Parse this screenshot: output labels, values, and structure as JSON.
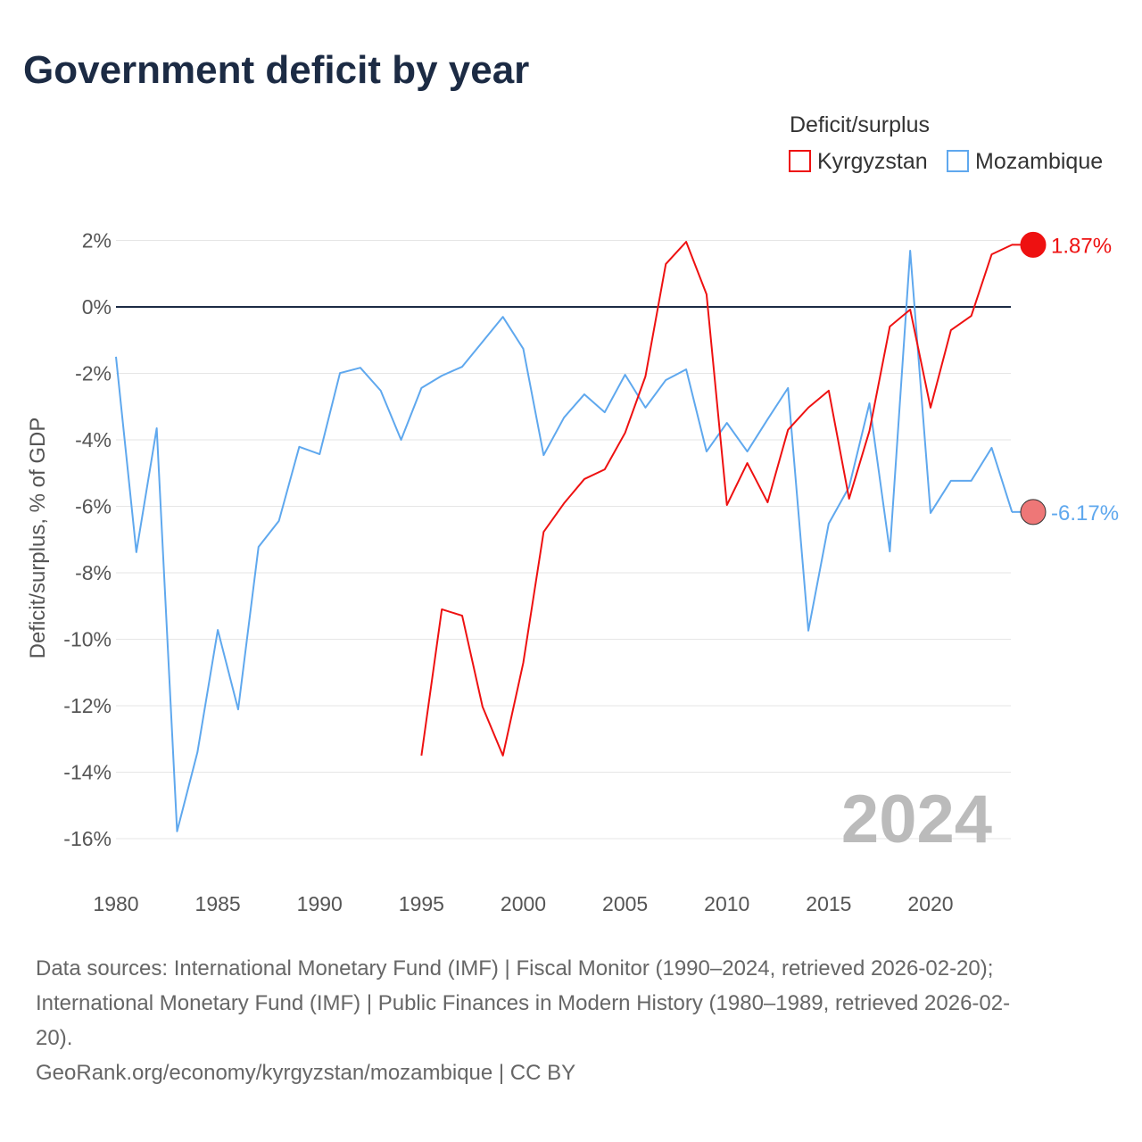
{
  "chart_data": {
    "type": "line",
    "title": "Government deficit by year",
    "ylabel": "Deficit/surplus, % of GDP",
    "xlabel": "",
    "xlim": [
      1980,
      2024
    ],
    "ylim": [
      -16,
      2
    ],
    "x_ticks": [
      1980,
      1985,
      1990,
      1995,
      2000,
      2005,
      2010,
      2015,
      2020
    ],
    "y_ticks": [
      2,
      0,
      -2,
      -4,
      -6,
      -8,
      -10,
      -12,
      -14,
      -16
    ],
    "y_tick_labels": [
      "2%",
      "0%",
      "-2%",
      "-4%",
      "-6%",
      "-8%",
      "-10%",
      "-12%",
      "-14%",
      "-16%"
    ],
    "x_tick_labels": [
      "1980",
      "1985",
      "1990",
      "1995",
      "2000",
      "2005",
      "2010",
      "2015",
      "2020"
    ],
    "legend_title": "Deficit/surplus",
    "legend_position": "top-right",
    "year_watermark": "2024",
    "series": [
      {
        "name": "Kyrgyzstan",
        "color": "#ee1111",
        "end_label": "1.87%",
        "x": [
          1995,
          1996,
          1997,
          1998,
          1999,
          2000,
          2001,
          2002,
          2003,
          2004,
          2005,
          2006,
          2007,
          2008,
          2009,
          2010,
          2011,
          2012,
          2013,
          2014,
          2015,
          2016,
          2017,
          2018,
          2019,
          2020,
          2021,
          2022,
          2023,
          2024
        ],
        "values": [
          -13.5,
          -9.1,
          -9.29,
          -12.03,
          -13.5,
          -10.71,
          -6.77,
          -5.91,
          -5.18,
          -4.89,
          -3.79,
          -2.09,
          1.29,
          1.96,
          0.38,
          -5.96,
          -4.7,
          -5.88,
          -3.7,
          -3.03,
          -2.52,
          -5.77,
          -3.73,
          -0.59,
          -0.08,
          -3.03,
          -0.7,
          -0.27,
          1.58,
          1.87
        ]
      },
      {
        "name": "Mozambique",
        "color": "#5fa8ee",
        "end_label": "-6.17%",
        "x": [
          1980,
          1981,
          1982,
          1983,
          1984,
          1985,
          1986,
          1987,
          1988,
          1989,
          1990,
          1991,
          1992,
          1993,
          1994,
          1995,
          1996,
          1997,
          1998,
          1999,
          2000,
          2001,
          2002,
          2003,
          2004,
          2005,
          2006,
          2007,
          2008,
          2009,
          2010,
          2011,
          2012,
          2013,
          2014,
          2015,
          2016,
          2017,
          2018,
          2019,
          2020,
          2021,
          2022,
          2023,
          2024
        ],
        "values": [
          -1.5,
          -7.38,
          -3.65,
          -15.78,
          -13.4,
          -9.72,
          -12.11,
          -7.22,
          -6.44,
          -4.21,
          -4.43,
          -1.99,
          -1.83,
          -2.52,
          -4.0,
          -2.44,
          -2.07,
          -1.8,
          -1.05,
          -0.3,
          -1.26,
          -4.46,
          -3.33,
          -2.63,
          -3.17,
          -2.04,
          -3.03,
          -2.2,
          -1.88,
          -4.35,
          -3.49,
          -4.35,
          -3.38,
          -2.44,
          -9.74,
          -6.52,
          -5.42,
          -2.9,
          -7.36,
          1.69,
          -6.2,
          -5.23,
          -5.23,
          -4.24,
          -6.17
        ]
      }
    ]
  },
  "footer": {
    "source_line1": "Data sources: International Monetary Fund (IMF) | Fiscal Monitor (1990–2024, retrieved 2026-02-20);",
    "source_line2": "International Monetary Fund (IMF) | Public Finances in Modern History (1980–1989, retrieved 2026-02-",
    "source_line3": "20).",
    "credit": "GeoRank.org/economy/kyrgyzstan/mozambique | CC BY"
  }
}
